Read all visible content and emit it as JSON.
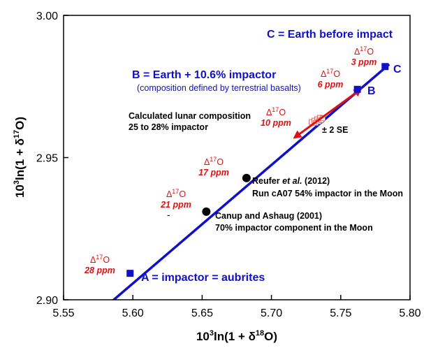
{
  "chart_data": {
    "type": "scatter",
    "xlabel_base": "10",
    "xlabel_sup1": "3",
    "xlabel_mid": "ln(1 + δ",
    "xlabel_sup2": "18",
    "xlabel_end": "O)",
    "ylabel_base": "10",
    "ylabel_sup1": "3",
    "ylabel_mid": "ln(1 + δ",
    "ylabel_sup2": "17",
    "ylabel_end": "O)",
    "xlim": [
      5.55,
      5.8
    ],
    "ylim": [
      2.9,
      3.0
    ],
    "x_ticks": [
      "5.55",
      "5.60",
      "5.65",
      "5.70",
      "5.75",
      "5.80"
    ],
    "y_ticks": [
      "2.90",
      "2.95",
      "3.00"
    ],
    "grid": false,
    "mixing_line": {
      "color": "#1010c8",
      "x": [
        5.573,
        5.785
      ],
      "y": [
        2.8945,
        2.9828
      ]
    },
    "end_members": [
      {
        "label": "A = impactor = aubrites",
        "x": 5.598,
        "y": 2.9093
      },
      {
        "label": "B",
        "x": 5.762,
        "y": 2.974
      },
      {
        "label": "C",
        "x": 5.782,
        "y": 2.982
      }
    ],
    "model_points": [
      {
        "x": 5.682,
        "y": 2.9428,
        "label_lines": [
          "Reufer et al. (2012)",
          "Run cA07 54% impactor in the Moon"
        ]
      },
      {
        "x": 5.653,
        "y": 2.931,
        "label_lines": [
          "Canup and Ashaug (2001)",
          "70% impactor component in the Moon"
        ]
      }
    ],
    "delta17O_annotations": [
      {
        "delta": "Δ",
        "sup": "17",
        "suffix": "O",
        "value": "28 ppm"
      },
      {
        "delta": "Δ",
        "sup": "17",
        "suffix": "O",
        "value": "21 ppm"
      },
      {
        "delta": "Δ",
        "sup": "17",
        "suffix": "O",
        "value": "17 ppm"
      },
      {
        "delta": "Δ",
        "sup": "17",
        "suffix": "O",
        "value": "10 ppm"
      },
      {
        "delta": "Δ",
        "sup": "17",
        "suffix": "O",
        "value": "6 ppm"
      },
      {
        "delta": "Δ",
        "sup": "17",
        "suffix": "O",
        "value": "3 ppm"
      }
    ],
    "lunar_samples": {
      "color": "#e01010",
      "points": [
        {
          "x": 5.729,
          "y": 2.9625
        },
        {
          "x": 5.731,
          "y": 2.963
        },
        {
          "x": 5.733,
          "y": 2.9635
        },
        {
          "x": 5.735,
          "y": 2.964
        },
        {
          "x": 5.732,
          "y": 2.9622
        },
        {
          "x": 5.734,
          "y": 2.9627
        },
        {
          "x": 5.736,
          "y": 2.9632
        },
        {
          "x": 5.737,
          "y": 2.9638
        }
      ]
    },
    "error_arrow": {
      "label": "± 2 SE",
      "color": "#e01010",
      "x1": 5.718,
      "y1": 2.9575,
      "x2": 5.763,
      "y2": 2.9735
    },
    "text_annotations": {
      "earth_before": "C = Earth before impact",
      "earth_plus": "B = Earth + 10.6% impactor",
      "composition": "(composition defined by terrestrial basalts)",
      "lunar_calc_1": "Calculated lunar composition",
      "lunar_calc_2": "25 to 28% impactor"
    }
  }
}
